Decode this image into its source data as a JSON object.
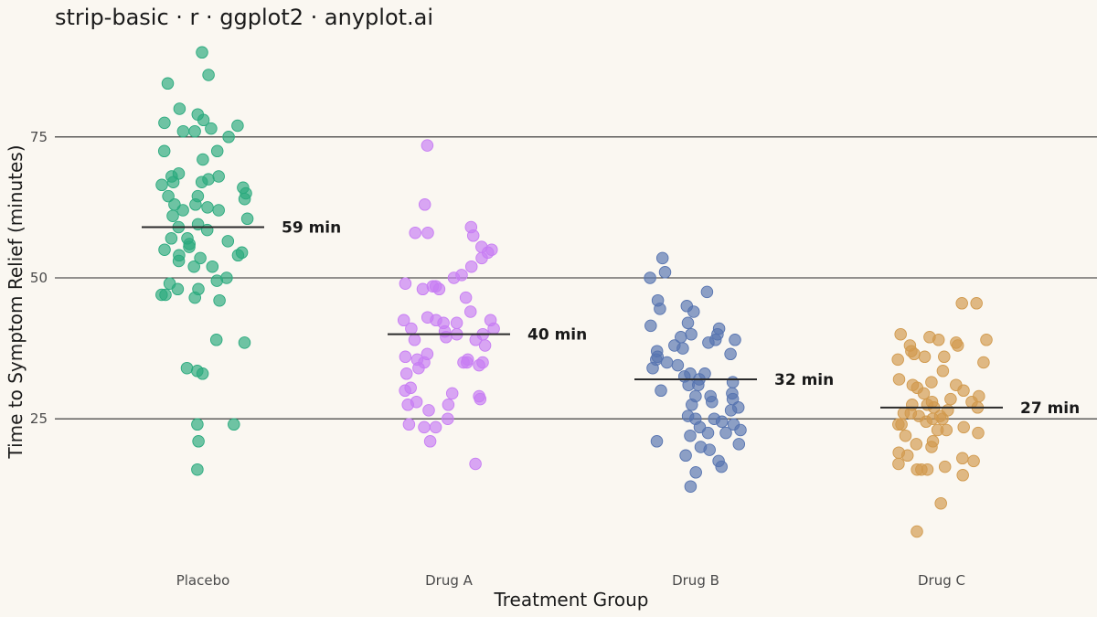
{
  "chart_data": {
    "type": "scatter",
    "subtype": "strip",
    "title": "strip-basic · r · ggplot2 · anyplot.ai",
    "xlabel": "Treatment Group",
    "ylabel": "Time to Symptom Relief (minutes)",
    "ylim": [
      2,
      92
    ],
    "yticks": [
      25,
      50,
      75
    ],
    "grid": "horizontal-major",
    "legend": "none",
    "categories": [
      "Placebo",
      "Drug A",
      "Drug B",
      "Drug C"
    ],
    "series": [
      {
        "category": "Placebo",
        "color": "#2BAA7E",
        "median": 59,
        "median_label": "59 min",
        "values": [
          90,
          86,
          84.5,
          80,
          79,
          78,
          77.5,
          77,
          76.5,
          76,
          76,
          75,
          72.5,
          72.5,
          71,
          68.5,
          68,
          68,
          67.5,
          67,
          67,
          66.5,
          66,
          65,
          64.5,
          64.5,
          64,
          63,
          63,
          62.5,
          62,
          62,
          61,
          60.5,
          59.5,
          59,
          58.5,
          57,
          57,
          56.5,
          56,
          55.5,
          55,
          54.5,
          54,
          54,
          53.5,
          53,
          52,
          52,
          50,
          49.5,
          49,
          48,
          48,
          47,
          47,
          46.5,
          46,
          39,
          38.5,
          34,
          33.5,
          33,
          24,
          24,
          21,
          16
        ]
      },
      {
        "category": "Drug A",
        "color": "#C77DF3",
        "median": 40,
        "median_label": "40 min",
        "values": [
          73.5,
          63,
          59,
          58,
          58,
          57.5,
          55.5,
          55,
          54.5,
          53.5,
          52,
          50.5,
          50,
          49,
          48.5,
          48.5,
          48,
          48,
          46.5,
          44,
          43,
          42.5,
          42.5,
          42.5,
          42,
          42,
          41,
          41,
          40.5,
          40,
          40,
          39.5,
          39,
          39,
          38,
          36.5,
          36,
          35.5,
          35.5,
          35,
          35,
          35,
          35,
          34.5,
          34,
          33,
          30.5,
          30,
          29.5,
          29,
          28.5,
          28,
          27.5,
          27.5,
          26.5,
          25,
          24,
          23.5,
          23.5,
          21,
          17
        ]
      },
      {
        "category": "Drug B",
        "color": "#5774B0",
        "median": 32,
        "median_label": "32 min",
        "values": [
          53.5,
          51,
          50,
          47.5,
          46,
          45,
          44.5,
          44,
          42,
          41.5,
          41,
          40,
          40,
          39.5,
          39,
          39,
          38.5,
          38,
          37.5,
          37,
          36.5,
          36,
          35.5,
          35,
          34.5,
          34,
          33,
          33,
          32.5,
          32,
          31.5,
          31,
          31,
          30,
          29.5,
          29,
          29,
          28.5,
          28,
          27.5,
          27,
          26.5,
          25.5,
          25,
          25,
          24.5,
          24,
          23.5,
          23,
          22.5,
          22.5,
          22,
          21,
          20.5,
          20,
          19.5,
          18.5,
          17.5,
          16.5,
          15.5,
          13
        ]
      },
      {
        "category": "Drug C",
        "color": "#D19A4E",
        "median": 27,
        "median_label": "27 min",
        "values": [
          45.5,
          45.5,
          40,
          39.5,
          39,
          39,
          38.5,
          38,
          38,
          37,
          36.5,
          36,
          36,
          35.5,
          35,
          33.5,
          32,
          31.5,
          31,
          31,
          30.5,
          30,
          29.5,
          29,
          28.5,
          28,
          28,
          27.5,
          27.5,
          27,
          27,
          26.5,
          26,
          26,
          25.5,
          25.5,
          25,
          25,
          24.5,
          24,
          24,
          23.5,
          23,
          23,
          22.5,
          22,
          21,
          20.5,
          20,
          19,
          18.5,
          18,
          17.5,
          17,
          16.5,
          16,
          16,
          16,
          15,
          10,
          5
        ]
      }
    ]
  }
}
